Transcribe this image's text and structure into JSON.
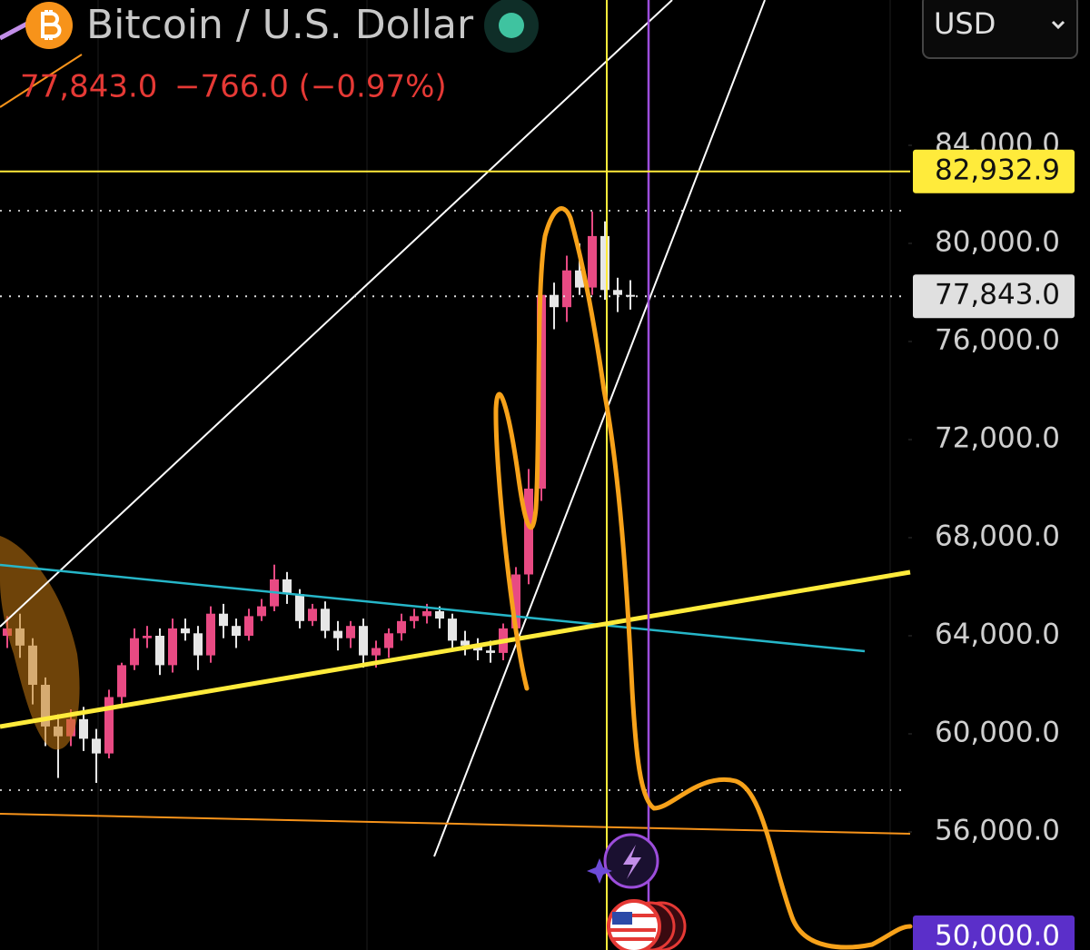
{
  "header": {
    "title": "Bitcoin / U.S. Dollar",
    "change": "−766.0 (−0.97%)",
    "currency": "USD"
  },
  "chart_data": {
    "type": "candlestick",
    "last_price": {
      "value": 77843,
      "label": "77,843.0"
    },
    "price_lines": [
      {
        "value": 82932.9,
        "label": "82,932.9",
        "color": "#ffeb3b"
      },
      {
        "value": 50000,
        "label": "50,000.0",
        "color": "#5b2fc9"
      }
    ],
    "up_color": "#e84a83",
    "down_color": "#e6e6e6",
    "ylim": [
      51185,
      89926
    ],
    "yticks": [
      {
        "value": 84000,
        "label": "84,000.0"
      },
      {
        "value": 80000,
        "label": "80,000.0"
      },
      {
        "value": 76000,
        "label": "76,000.0"
      },
      {
        "value": 72000,
        "label": "72,000.0"
      },
      {
        "value": 68000,
        "label": "68,000.0"
      },
      {
        "value": 64000,
        "label": "64,000.0"
      },
      {
        "value": 60000,
        "label": "60,000.0"
      },
      {
        "value": 56000,
        "label": "56,000.0"
      }
    ],
    "open": [
      64000,
      64300,
      63600,
      62000,
      60300,
      59900,
      60600,
      59800,
      59200,
      61500,
      62800,
      63900,
      64000,
      62800,
      64300,
      64100,
      63200,
      64900,
      64400,
      64000,
      64800,
      65200,
      66300,
      65700,
      64600,
      65100,
      64200,
      63900,
      64400,
      63200,
      63500,
      64100,
      64600,
      64800,
      65000,
      64700,
      63800,
      63600,
      63400,
      63300,
      64300,
      66500,
      70000,
      77900,
      77400,
      78900,
      78200,
      80300,
      78100,
      77900
    ],
    "high": [
      64800,
      64900,
      63900,
      62300,
      60800,
      61000,
      61100,
      60200,
      61800,
      62900,
      64300,
      64400,
      64300,
      64700,
      64700,
      64400,
      65200,
      65300,
      64700,
      65100,
      65500,
      66900,
      66600,
      65900,
      65300,
      65400,
      64600,
      64600,
      64700,
      63800,
      64300,
      64900,
      65100,
      65300,
      65200,
      64900,
      64200,
      63900,
      63800,
      64500,
      66800,
      70800,
      78600,
      78400,
      79500,
      80000,
      81300,
      80900,
      78600,
      78500
    ],
    "low": [
      63500,
      63100,
      61200,
      59500,
      58200,
      59500,
      59300,
      58000,
      59000,
      61200,
      62600,
      63500,
      62400,
      62500,
      63800,
      62600,
      62900,
      63900,
      63500,
      63800,
      64600,
      65000,
      65300,
      64300,
      64400,
      63900,
      63400,
      63500,
      62700,
      62700,
      63100,
      63800,
      64300,
      64500,
      64300,
      63500,
      63200,
      63000,
      62900,
      63000,
      64100,
      66100,
      69500,
      76500,
      76800,
      77900,
      77900,
      77700,
      77200,
      77300
    ],
    "close": [
      64300,
      63600,
      62000,
      60300,
      59900,
      60600,
      59800,
      59200,
      61500,
      62800,
      63900,
      64000,
      62800,
      64300,
      64100,
      63200,
      64900,
      64400,
      64000,
      64800,
      65200,
      66300,
      65700,
      64600,
      65100,
      64200,
      63900,
      64400,
      63200,
      63500,
      64100,
      64600,
      64800,
      65000,
      64700,
      63800,
      63600,
      63400,
      63300,
      64300,
      66500,
      70000,
      77900,
      77400,
      78900,
      78200,
      80300,
      78100,
      77900,
      77843
    ]
  }
}
